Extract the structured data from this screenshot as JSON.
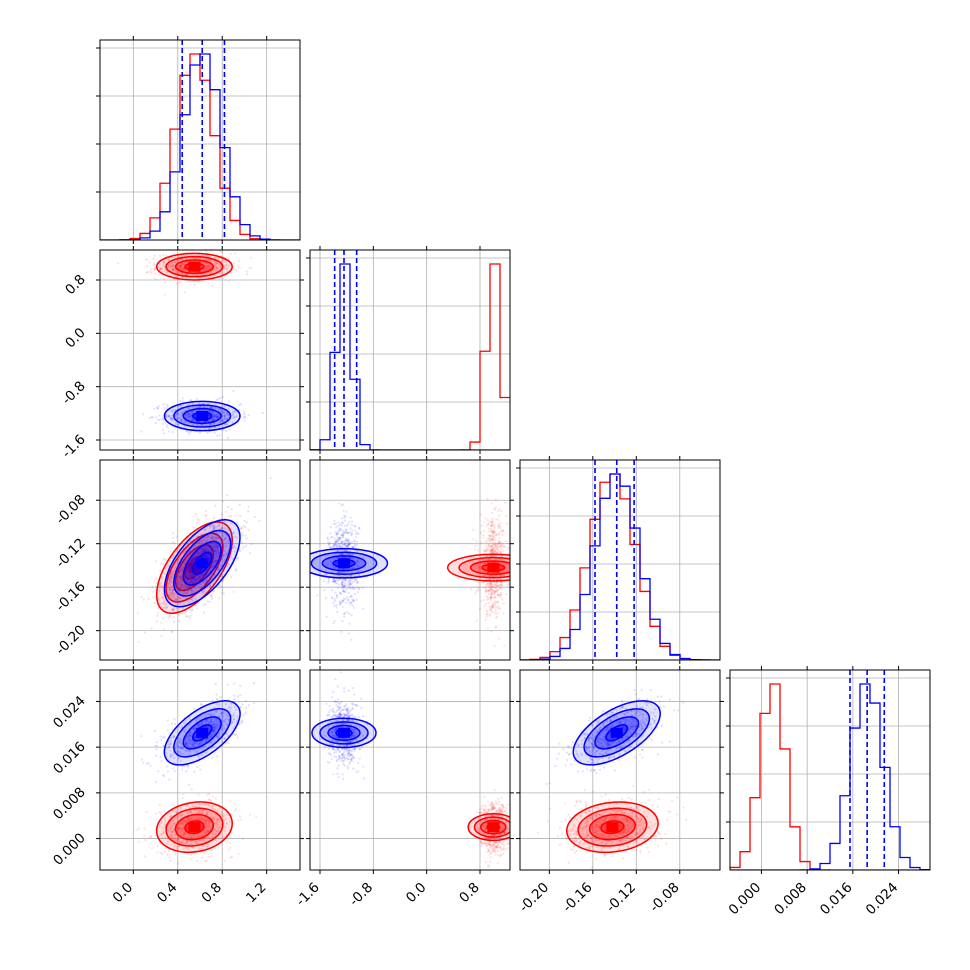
{
  "chart_data": {
    "type": "corner",
    "colors": {
      "blue": "#0000ff",
      "red": "#ff0000"
    },
    "grid": true,
    "series": [
      {
        "color": "#0000ff",
        "means": [
          0.62,
          -1.24,
          -0.138,
          0.0185
        ],
        "sds": [
          0.17,
          0.11,
          0.02,
          0.0028
        ],
        "corr": [
          [
            1,
            0,
            0.6,
            0.6
          ],
          [
            0,
            1,
            0,
            0
          ],
          [
            0.6,
            0,
            1,
            0.6
          ],
          [
            0.6,
            0,
            0.6,
            1
          ]
        ],
        "quantile_lines": true
      },
      {
        "color": "#ff0000",
        "means": [
          0.55,
          1.0,
          -0.142,
          0.002
        ],
        "sds": [
          0.17,
          0.1,
          0.021,
          0.0022
        ],
        "corr": [
          [
            1,
            0,
            0.6,
            0.15
          ],
          [
            0,
            1,
            0,
            0
          ],
          [
            0.6,
            0,
            1,
            0.15
          ],
          [
            0.15,
            0,
            0.15,
            1
          ]
        ],
        "quantile_lines": false
      }
    ],
    "quantiles": [
      [
        0.44,
        0.62,
        0.82
      ],
      [
        -1.38,
        -1.24,
        -1.05
      ],
      [
        -0.158,
        -0.138,
        -0.122
      ],
      [
        0.0155,
        0.0185,
        0.0215
      ]
    ],
    "params": [
      {
        "range": [
          -0.3,
          1.5
        ],
        "ticks": [
          "0.0",
          "0.4",
          "0.8",
          "1.2"
        ],
        "tick_values": [
          0,
          0.4,
          0.8,
          1.2
        ]
      },
      {
        "range": [
          -1.75,
          1.25
        ],
        "ticks": [
          "-1.6",
          "-0.8",
          "0.0",
          "0.8"
        ],
        "tick_values": [
          -1.6,
          -0.8,
          0,
          0.8
        ]
      },
      {
        "range": [
          -0.227,
          -0.043
        ],
        "ticks": [
          "-0.20",
          "-0.16",
          "-0.12",
          "-0.08"
        ],
        "tick_values": [
          -0.2,
          -0.16,
          -0.12,
          -0.08
        ]
      },
      {
        "range": [
          -0.0055,
          0.0295
        ],
        "ticks": [
          "0.000",
          "0.008",
          "0.016",
          "0.024"
        ],
        "tick_values": [
          0,
          0.008,
          0.016,
          0.024
        ]
      }
    ]
  }
}
